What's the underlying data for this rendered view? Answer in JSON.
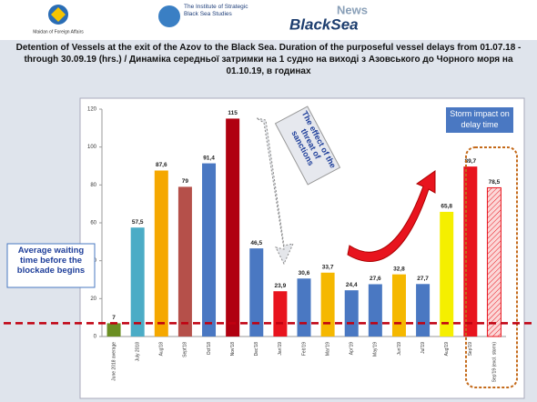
{
  "header": {
    "logo_left": "Maidan of Foreign Affairs",
    "logo_middle": "The Institute of Strategic Black Sea Studies",
    "logo_right_top": "News",
    "logo_right": "BlackSea"
  },
  "chart_data": {
    "type": "bar",
    "title": "Detention of Vessels at the exit of the Azov to the Black Sea. Duration of the purposeful vessel delays from 01.07.18 - through 30.09.19 (hrs.) / Динаміка середньої затримки на 1 судно на виході з Азовського до Чорного моря на 01.10.19, в годинах",
    "categories": [
      "June 2018 average",
      "July 2018",
      "Aug'18",
      "Sept'18",
      "Oct'18",
      "Nov'18",
      "Dec'18",
      "Jan'19",
      "Feb'19",
      "Mar'19",
      "Apr'19",
      "May'19",
      "Jun'19",
      "Jul'19",
      "Aug'19",
      "Sep'19",
      "Sep'19 (excl. storm)"
    ],
    "values": [
      7,
      57.5,
      87.6,
      79,
      91.4,
      115,
      46.5,
      23.9,
      30.6,
      33.7,
      24.4,
      27.6,
      32.8,
      27.7,
      65.8,
      89.7,
      78.5
    ],
    "value_labels": [
      "7",
      "57,5",
      "87,6",
      "79",
      "91,4",
      "115",
      "46,5",
      "23,9",
      "30,6",
      "33,7",
      "24,4",
      "27,6",
      "32,8",
      "27,7",
      "65,8",
      "89,7",
      "78,5"
    ],
    "colors": [
      "#6b8e23",
      "#4bacc6",
      "#f5a800",
      "#b5504a",
      "#4a78c2",
      "#b00010",
      "#4a78c2",
      "#e8141e",
      "#4a78c2",
      "#f5b800",
      "#4a78c2",
      "#4a78c2",
      "#f5b800",
      "#4a78c2",
      "#f5ef00",
      "#e8141e",
      "#f4b6b6"
    ],
    "ylim": [
      0,
      120
    ],
    "yticks": [
      0,
      20,
      40,
      60,
      80,
      100,
      120
    ],
    "grid": false,
    "reference_line": 7,
    "annotations": [
      "Average waiting time before the blockade begins",
      "The effect of the threat of sanctions",
      "Storm impact on delay time"
    ]
  }
}
